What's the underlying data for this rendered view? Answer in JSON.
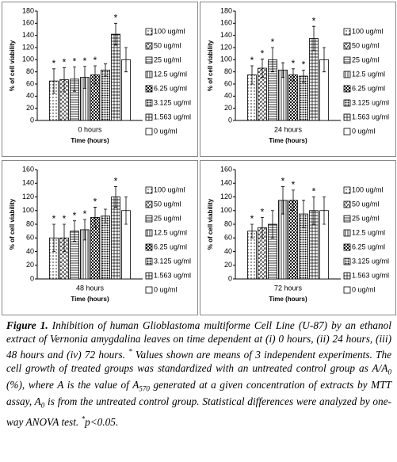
{
  "chart_data": [
    {
      "type": "bar",
      "categories": [
        "0 hours"
      ],
      "x_label": "Time (hours)",
      "y_label": "% of cell viability",
      "ylim": [
        0,
        180
      ],
      "yticks": [
        0,
        20,
        40,
        60,
        80,
        100,
        120,
        140,
        160,
        180
      ],
      "series": [
        {
          "name": "100 ug/ml",
          "color": "#000000",
          "values": [
            65
          ],
          "errors": [
            20
          ],
          "significance": "*"
        },
        {
          "name": "50 ug/ml",
          "color": "#000000",
          "values": [
            67
          ],
          "errors": [
            20
          ],
          "significance": "*"
        },
        {
          "name": "25 ug/ml",
          "color": "#000000",
          "values": [
            68
          ],
          "errors": [
            20
          ],
          "significance": "*"
        },
        {
          "name": "12.5 ug/ml",
          "color": "#000000",
          "values": [
            71
          ],
          "errors": [
            18
          ],
          "significance": "*"
        },
        {
          "name": "6.25 ug/ml",
          "color": "#000000",
          "values": [
            75
          ],
          "errors": [
            15
          ],
          "significance": "*"
        },
        {
          "name": "3.125 ug/ml",
          "color": "#000000",
          "values": [
            83
          ],
          "errors": [
            10
          ],
          "significance": null
        },
        {
          "name": "1.563 ug/ml",
          "color": "#000000",
          "values": [
            142
          ],
          "errors": [
            18
          ],
          "significance": "*"
        },
        {
          "name": "0 ug/ml",
          "color": "#000000",
          "values": [
            100
          ],
          "errors": [
            20
          ],
          "significance": null
        }
      ]
    },
    {
      "type": "bar",
      "categories": [
        "24 hours"
      ],
      "x_label": "Time (hours)",
      "y_label": "% of cell viability",
      "ylim": [
        0,
        180
      ],
      "yticks": [
        0,
        20,
        40,
        60,
        80,
        100,
        120,
        140,
        160,
        180
      ],
      "series": [
        {
          "name": "100 ug/ml",
          "color": "#000000",
          "values": [
            75
          ],
          "errors": [
            15
          ],
          "significance": "*"
        },
        {
          "name": "50 ug/ml",
          "color": "#000000",
          "values": [
            86
          ],
          "errors": [
            15
          ],
          "significance": "*"
        },
        {
          "name": "25 ug/ml",
          "color": "#000000",
          "values": [
            100
          ],
          "errors": [
            20
          ],
          "significance": "*"
        },
        {
          "name": "12.5 ug/ml",
          "color": "#000000",
          "values": [
            83
          ],
          "errors": [
            12
          ],
          "significance": null
        },
        {
          "name": "6.25 ug/ml",
          "color": "#000000",
          "values": [
            75
          ],
          "errors": [
            10
          ],
          "significance": "*"
        },
        {
          "name": "3.125 ug/ml",
          "color": "#000000",
          "values": [
            73
          ],
          "errors": [
            10
          ],
          "significance": "*"
        },
        {
          "name": "1.563 ug/ml",
          "color": "#000000",
          "values": [
            135
          ],
          "errors": [
            20
          ],
          "significance": "*"
        },
        {
          "name": "0 ug/ml",
          "color": "#000000",
          "values": [
            100
          ],
          "errors": [
            20
          ],
          "significance": null
        }
      ]
    },
    {
      "type": "bar",
      "categories": [
        "48 hours"
      ],
      "x_label": "Time (hours)",
      "y_label": "% of cell viability",
      "ylim": [
        0,
        160
      ],
      "yticks": [
        0,
        20,
        40,
        60,
        80,
        100,
        120,
        140,
        160
      ],
      "series": [
        {
          "name": "100 ug/ml",
          "color": "#000000",
          "values": [
            60
          ],
          "errors": [
            20
          ],
          "significance": "*"
        },
        {
          "name": "50 ug/ml",
          "color": "#000000",
          "values": [
            60
          ],
          "errors": [
            20
          ],
          "significance": "*"
        },
        {
          "name": "25 ug/ml",
          "color": "#000000",
          "values": [
            70
          ],
          "errors": [
            15
          ],
          "significance": "*"
        },
        {
          "name": "12.5 ug/ml",
          "color": "#000000",
          "values": [
            72
          ],
          "errors": [
            15
          ],
          "significance": "*"
        },
        {
          "name": "6.25 ug/ml",
          "color": "#000000",
          "values": [
            90
          ],
          "errors": [
            15
          ],
          "significance": "*"
        },
        {
          "name": "3.125 ug/ml",
          "color": "#000000",
          "values": [
            92
          ],
          "errors": [
            10
          ],
          "significance": null
        },
        {
          "name": "1.563 ug/ml",
          "color": "#000000",
          "values": [
            120
          ],
          "errors": [
            15
          ],
          "significance": "*"
        },
        {
          "name": "0 ug/ml",
          "color": "#000000",
          "values": [
            100
          ],
          "errors": [
            20
          ],
          "significance": null
        }
      ]
    },
    {
      "type": "bar",
      "categories": [
        "72 hours"
      ],
      "x_label": "Time (hours)",
      "y_label": "% of cell viability",
      "ylim": [
        0,
        160
      ],
      "yticks": [
        0,
        20,
        40,
        60,
        80,
        100,
        120,
        140,
        160
      ],
      "series": [
        {
          "name": "100 ug/ml",
          "color": "#000000",
          "values": [
            70
          ],
          "errors": [
            10
          ],
          "significance": "*"
        },
        {
          "name": "50 ug/ml",
          "color": "#000000",
          "values": [
            75
          ],
          "errors": [
            15
          ],
          "significance": "*"
        },
        {
          "name": "25 ug/ml",
          "color": "#000000",
          "values": [
            80
          ],
          "errors": [
            20
          ],
          "significance": null
        },
        {
          "name": "12.5 ug/ml",
          "color": "#000000",
          "values": [
            115
          ],
          "errors": [
            20
          ],
          "significance": "*"
        },
        {
          "name": "6.25 ug/ml",
          "color": "#000000",
          "values": [
            115
          ],
          "errors": [
            15
          ],
          "significance": "*"
        },
        {
          "name": "3.125 ug/ml",
          "color": "#000000",
          "values": [
            95
          ],
          "errors": [
            20
          ],
          "significance": null
        },
        {
          "name": "1.563 ug/ml",
          "color": "#000000",
          "values": [
            100
          ],
          "errors": [
            20
          ],
          "significance": "*"
        },
        {
          "name": "0 ug/ml",
          "color": "#000000",
          "values": [
            100
          ],
          "errors": [
            20
          ],
          "significance": null
        }
      ]
    }
  ],
  "caption": {
    "label": "Figure 1.",
    "segments": [
      " Inhibition of human Glioblastoma multiforme Cell Line (U-87) by an ethanol extract of Vernonia amygdalina leaves on time dependent at (i) 0 hours, (ii) 24 hours, (iii) 48 hours and (iv) 72 hours. ",
      "*",
      " Values shown are means of 3 independent experiments. The cell growth of treated groups was standardized with an untreated control group as A/A",
      "0",
      " (%), where A is the value of A",
      "570",
      " generated at a given concentration of extracts by MTT assay, A",
      "0",
      " is from the untreated control group. Statistical differences were analyzed by one-way ANOVA test. ",
      "*",
      "p<0.05."
    ]
  }
}
